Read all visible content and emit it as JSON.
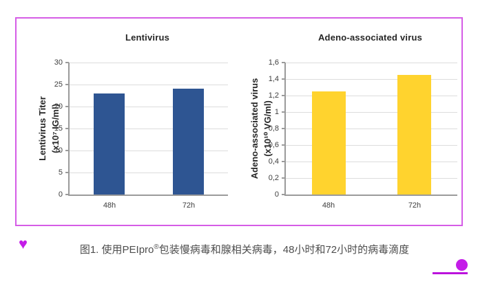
{
  "figure": {
    "caption": {
      "prefix": "图1. 使用PEIpro",
      "registered_mark": "®",
      "suffix": "包装慢病毒和腺相关病毒，48小时和72小时的病毒滴度"
    },
    "heart_glyph": "♥"
  },
  "colors": {
    "panel_border": "#D55CE6",
    "accent_magenta": "#C41DE8",
    "underline_magenta": "#BB12DC",
    "grid": "#DCDCDC",
    "axis": "#9A9A9A",
    "bar_blue": "#2E5592",
    "bar_yellow": "#FFD32E"
  },
  "chart_data": [
    {
      "type": "bar",
      "title": "Lentivirus",
      "ylabel": [
        "Lentivirus Titer",
        "(x10⁷ IG/ml)"
      ],
      "xlabel": "",
      "categories": [
        "48h",
        "72h"
      ],
      "values": [
        23,
        24
      ],
      "ylim": [
        0,
        30
      ],
      "yticks": [
        0,
        5,
        10,
        15,
        20,
        25,
        30
      ],
      "ytick_labels": [
        "0",
        "5",
        "10",
        "15",
        "20",
        "25",
        "30"
      ],
      "bar_color": "#2E5592",
      "grid": true,
      "legend": false
    },
    {
      "type": "bar",
      "title": "Adeno-associated virus",
      "ylabel": [
        "Adeno-associated virus",
        "(x10¹⁰ VG/ml)"
      ],
      "xlabel": "",
      "categories": [
        "48h",
        "72h"
      ],
      "values": [
        1.25,
        1.45
      ],
      "ylim": [
        0,
        1.6
      ],
      "yticks": [
        0,
        0.2,
        0.4,
        0.6,
        0.8,
        1,
        1.2,
        1.4,
        1.6
      ],
      "ytick_labels": [
        "0",
        "0,2",
        "0,4",
        "0,6",
        "0,8",
        "1",
        "1,2",
        "1,4",
        "1,6"
      ],
      "bar_color": "#FFD32E",
      "grid": true,
      "legend": false
    }
  ]
}
